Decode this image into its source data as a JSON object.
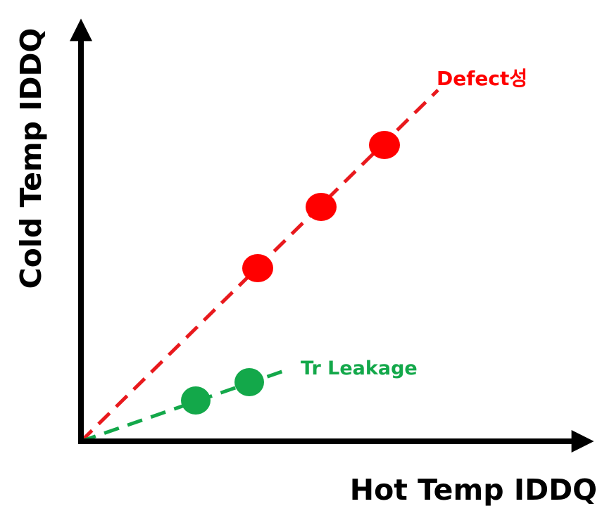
{
  "axes": {
    "x_label": "Hot Temp IDDQ",
    "y_label": "Cold Temp IDDQ"
  },
  "series": [
    {
      "label": "Defect성"
    },
    {
      "label": "Tr Leakage"
    }
  ]
}
